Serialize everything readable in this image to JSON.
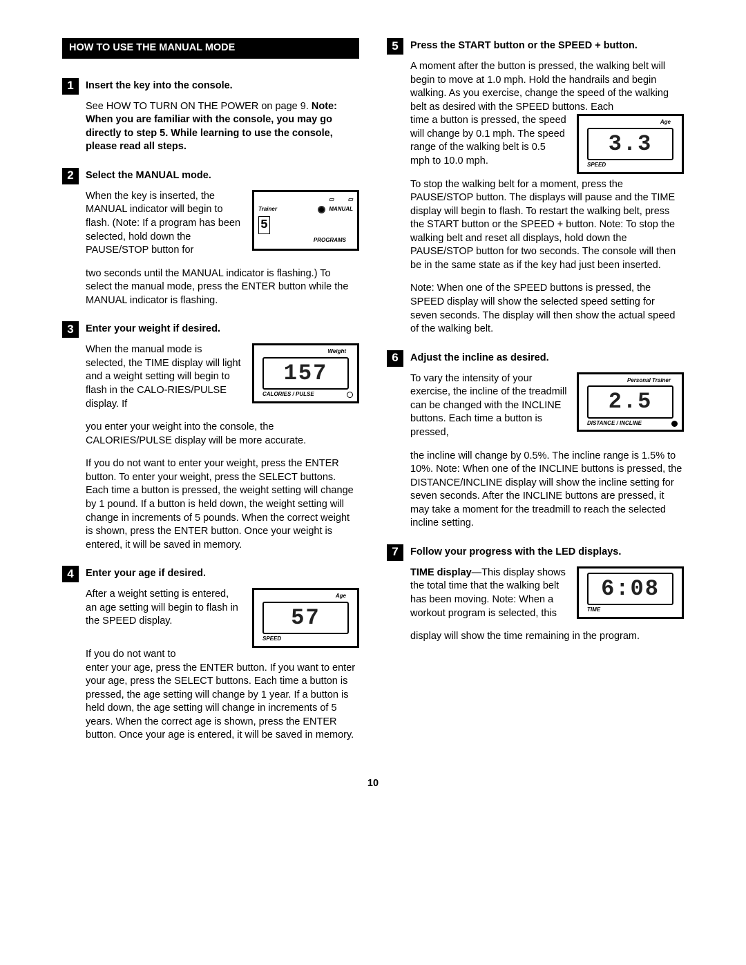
{
  "pageNumber": "10",
  "header": "HOW TO USE THE MANUAL MODE",
  "steps": {
    "s1": {
      "num": "1",
      "title": "Insert the key into the console.",
      "p1": "See HOW TO TURN ON THE POWER on page 9. ",
      "bold1": "Note: When you are familiar with the console, you may go directly to step 5. While learning to use the console, please read all steps."
    },
    "s2": {
      "num": "2",
      "title": "Select the MANUAL mode.",
      "p1": "When the key is inserted, the MANUAL indicator will begin to flash. (Note: If a program has been selected, hold down the PAUSE/STOP button for",
      "p2": "two seconds until the MANUAL indicator is flashing.) To select the manual mode, press the ENTER button while the MANUAL indicator is flashing.",
      "fig": {
        "trainer": "Trainer",
        "manual": "MANUAL",
        "programs": "PROGRAMS",
        "seg": "5"
      }
    },
    "s3": {
      "num": "3",
      "title": "Enter your weight if desired.",
      "p1": "When the manual mode is selected, the TIME display will light and a weight setting will begin to flash in the CALO-RIES/PULSE display. If",
      "p2": "you enter your weight into the console, the CALORIES/PULSE display will be more accurate.",
      "p3": "If you do not want to enter your weight, press the ENTER button. To enter your weight, press the SELECT buttons. Each time a button is pressed, the weight setting will change by 1 pound. If a button is held down, the weight setting will change in increments of 5 pounds. When the correct weight is shown, press the ENTER button. Once your weight is entered, it will be saved in memory.",
      "fig": {
        "top": "Weight",
        "seg": "157",
        "bot": "CALORIES / PULSE"
      }
    },
    "s4": {
      "num": "4",
      "title": "Enter your age if desired.",
      "p1": "After a weight setting is entered, an age setting will begin to flash in the SPEED display.",
      "p2": "If you do not want to",
      "p3": "enter your age, press the ENTER button. If you want to enter your age, press the SELECT buttons. Each time a button is pressed, the age setting will change by 1 year. If a button is held down, the age setting will change in increments of 5 years. When the correct age is shown, press the ENTER button. Once your age is entered, it will be saved in memory.",
      "fig": {
        "top": "Age",
        "seg": "57",
        "bot": "SPEED"
      }
    },
    "s5": {
      "num": "5",
      "title": "Press the START button or the SPEED + button.",
      "p1": "A moment after the button is pressed, the walking belt will begin to move at 1.0 mph. Hold the handrails and begin walking. As you exercise, change the speed of the walking belt as desired with the SPEED buttons. Each",
      "p1b": "time a button is pressed, the speed will change by 0.1 mph. The speed range of the walking belt is 0.5 mph to 10.0 mph.",
      "p2": "To stop the walking belt for a moment, press the PAUSE/STOP button. The displays will pause and the TIME display will begin to flash. To restart the walking belt, press the START button or the SPEED + button. Note: To stop the walking belt and reset all displays, hold down the PAUSE/STOP button for two seconds. The console will then be in the same state as if the key had just been inserted.",
      "p3": "Note: When one of the SPEED buttons is pressed, the SPEED display will show the selected speed setting for seven seconds. The display will then show the actual speed of the walking belt.",
      "fig": {
        "top": "Age",
        "seg": "3.3",
        "bot": "SPEED"
      }
    },
    "s6": {
      "num": "6",
      "title": "Adjust the incline as desired.",
      "p1": "To vary the intensity of your exercise, the incline of the treadmill can be changed with the INCLINE buttons. Each time a button is pressed,",
      "p2": "the incline will change by 0.5%. The incline range is 1.5% to 10%. Note: When one of the INCLINE buttons is pressed, the DISTANCE/INCLINE display will show the incline setting for seven seconds. After the INCLINE buttons are pressed, it may take a moment for the treadmill to reach the selected incline setting.",
      "fig": {
        "top": "Personal Trainer",
        "seg": "2.5",
        "bot": "DISTANCE / INCLINE"
      }
    },
    "s7": {
      "num": "7",
      "title": "Follow your progress with the LED displays.",
      "boldlead": "TIME display",
      "p1a": "—This display shows the total time that the walking belt has been moving. Note: When a workout program is selected, this",
      "p2": "display will show the time remaining in the program.",
      "fig": {
        "top": "",
        "seg": "6:08",
        "bot": "TIME"
      }
    }
  }
}
